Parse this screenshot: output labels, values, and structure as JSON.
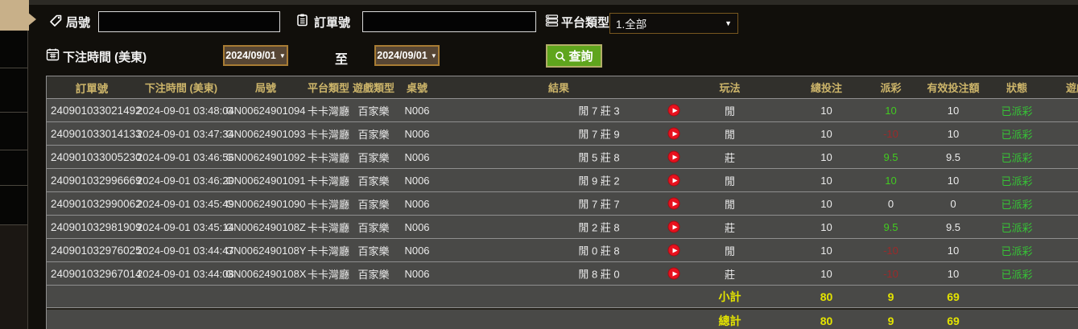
{
  "filters": {
    "round_label": "局號",
    "round_value": "",
    "order_label": "訂單號",
    "order_value": "",
    "platform_label": "平台類型",
    "platform_value": "1.全部",
    "bet_time_label": "下注時間 (美東)",
    "date_from": "2024/09/01",
    "date_to": "2024/09/01",
    "to_label": "至",
    "search_label": "查詢"
  },
  "table": {
    "columns": [
      "訂單號",
      "下注時間 (美東)",
      "局號",
      "平台類型",
      "遊戲類型",
      "桌號",
      "結果",
      "玩法",
      "總投注",
      "派彩",
      "有效投注額",
      "狀態",
      "遊戲"
    ],
    "rows": [
      {
        "order": "240901033021492",
        "time": "2024-09-01 03:48:04",
        "round": "GN00624901094",
        "platform": "卡卡灣廳",
        "game": "百家樂",
        "table": "N006",
        "result": "閒 7 莊 3",
        "play": "閒",
        "total": "10",
        "payout": "10",
        "payout_color": "green",
        "valid": "10",
        "status": "已派彩"
      },
      {
        "order": "240901033014133",
        "time": "2024-09-01 03:47:34",
        "round": "GN00624901093",
        "platform": "卡卡灣廳",
        "game": "百家樂",
        "table": "N006",
        "result": "閒 7 莊 9",
        "play": "閒",
        "total": "10",
        "payout": "-10",
        "payout_color": "red",
        "valid": "10",
        "status": "已派彩"
      },
      {
        "order": "240901033005230",
        "time": "2024-09-01 03:46:56",
        "round": "GN00624901092",
        "platform": "卡卡灣廳",
        "game": "百家樂",
        "table": "N006",
        "result": "閒 5 莊 8",
        "play": "莊",
        "total": "10",
        "payout": "9.5",
        "payout_color": "green",
        "valid": "9.5",
        "status": "已派彩"
      },
      {
        "order": "240901032996669",
        "time": "2024-09-01 03:46:20",
        "round": "GN00624901091",
        "platform": "卡卡灣廳",
        "game": "百家樂",
        "table": "N006",
        "result": "閒 9 莊 2",
        "play": "閒",
        "total": "10",
        "payout": "10",
        "payout_color": "green",
        "valid": "10",
        "status": "已派彩"
      },
      {
        "order": "240901032990062",
        "time": "2024-09-01 03:45:49",
        "round": "GN00624901090",
        "platform": "卡卡灣廳",
        "game": "百家樂",
        "table": "N006",
        "result": "閒 7 莊 7",
        "play": "閒",
        "total": "10",
        "payout": "0",
        "payout_color": "white",
        "valid": "0",
        "status": "已派彩"
      },
      {
        "order": "240901032981909",
        "time": "2024-09-01 03:45:14",
        "round": "GN0062490108Z",
        "platform": "卡卡灣廳",
        "game": "百家樂",
        "table": "N006",
        "result": "閒 2 莊 8",
        "play": "莊",
        "total": "10",
        "payout": "9.5",
        "payout_color": "green",
        "valid": "9.5",
        "status": "已派彩"
      },
      {
        "order": "240901032976025",
        "time": "2024-09-01 03:44:47",
        "round": "GN0062490108Y",
        "platform": "卡卡灣廳",
        "game": "百家樂",
        "table": "N006",
        "result": "閒 0 莊 8",
        "play": "閒",
        "total": "10",
        "payout": "-10",
        "payout_color": "red",
        "valid": "10",
        "status": "已派彩"
      },
      {
        "order": "240901032967014",
        "time": "2024-09-01 03:44:08",
        "round": "GN0062490108X",
        "platform": "卡卡灣廳",
        "game": "百家樂",
        "table": "N006",
        "result": "閒 8 莊 0",
        "play": "莊",
        "total": "10",
        "payout": "-10",
        "payout_color": "red",
        "valid": "10",
        "status": "已派彩"
      }
    ],
    "subtotal": {
      "label": "小計",
      "total": "80",
      "payout": "9",
      "valid": "69"
    },
    "grand_total": {
      "label": "總計",
      "total": "80",
      "payout": "9",
      "valid": "69"
    }
  },
  "colors": {
    "header_text": "#cdb56a",
    "summary": "#e4e400",
    "payout_green": "#42cb20",
    "loss_red": "#9c2a2a",
    "status_green": "#36c436",
    "button_green": "#5fa51d",
    "tan": "#c8b089",
    "date_border": "#a87c34"
  }
}
